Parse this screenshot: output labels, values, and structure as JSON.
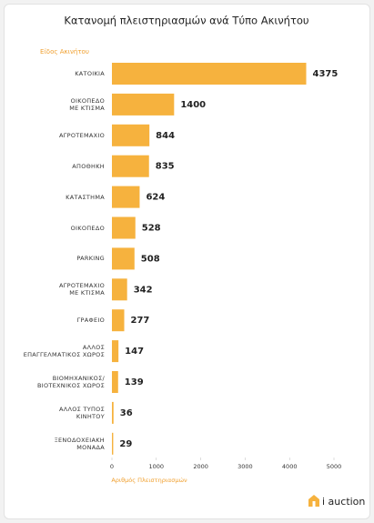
{
  "chart_data": {
    "type": "bar",
    "orientation": "horizontal",
    "title": "Κατανομή πλειστηριασμών ανά Τύπο Ακινήτου",
    "y_label": "Είδος Ακινήτου",
    "x_label": "Αριθμός Πλειστηριασμών",
    "categories": [
      "ΚΑΤΟΙΚΙΑ",
      "ΟΙΚΟΠΕΔΟ\nΜΕ ΚΤΙΣΜΑ",
      "ΑΓΡΟΤΕΜΑΧΙΟ",
      "ΑΠΟΘΗΚΗ",
      "ΚΑΤΑΣΤΗΜΑ",
      "ΟΙΚΟΠΕΔΟ",
      "PARKING",
      "ΑΓΡΟΤΕΜΑΧΙΟ\nΜΕ ΚΤΙΣΜΑ",
      "ΓΡΑΦΕΙΟ",
      "ΑΛΛΟΣ\nΕΠΑΓΓΕΛΜΑΤΙΚΟΣ ΧΩΡΟΣ",
      "ΒΙΟΜΗΧΑΝΙΚΟΣ/\nΒΙΟΤΕΧΝΙΚΟΣ ΧΩΡΟΣ",
      "ΑΛΛΟΣ ΤΥΠΟΣ\nΚΙΝΗΤΟΥ",
      "ΞΕΝΟΔΟΧΕΙΑΚΗ\nΜΟΝΑΔΑ"
    ],
    "values": [
      4375,
      1400,
      844,
      835,
      624,
      528,
      508,
      342,
      277,
      147,
      139,
      36,
      29
    ],
    "color": "#f6b23e",
    "xlim": [
      0,
      5000
    ],
    "xticks": [
      0,
      1000,
      2000,
      3000,
      4000,
      5000
    ],
    "brand": "i auction"
  }
}
